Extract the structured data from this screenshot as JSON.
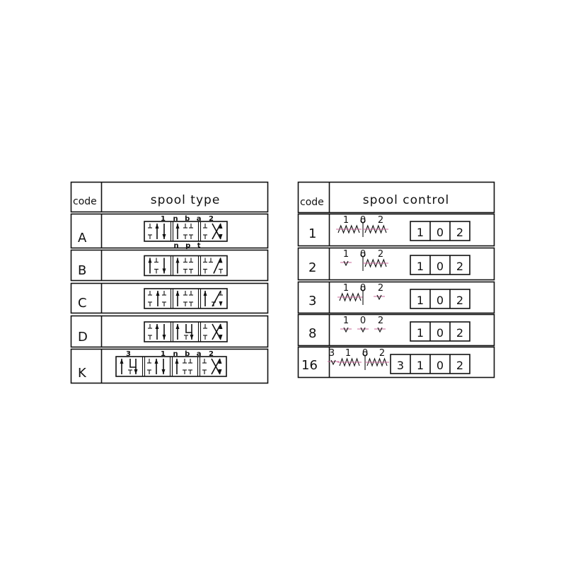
{
  "spool_type_table": {
    "header_code": "code",
    "header_title": "spool type",
    "rows": [
      {
        "code": "A",
        "top_labels": [
          "1",
          "n b a",
          "2"
        ],
        "bottom_labels": [
          "n p t"
        ]
      },
      {
        "code": "B",
        "top_labels": [],
        "bottom_labels": []
      },
      {
        "code": "C",
        "top_labels": [],
        "bottom_labels": []
      },
      {
        "code": "D",
        "top_labels": [],
        "bottom_labels": []
      },
      {
        "code": "K",
        "top_labels": [
          "3",
          "1",
          "n b a",
          "2"
        ],
        "bottom_labels": []
      }
    ]
  },
  "spool_control_table": {
    "header_code": "code",
    "header_title": "spool control",
    "rows": [
      {
        "code": "1",
        "symbol_labels": [
          "1",
          "0",
          "2"
        ],
        "positions": [
          "1",
          "0",
          "2"
        ]
      },
      {
        "code": "2",
        "symbol_labels": [
          "1",
          "0",
          "2"
        ],
        "positions": [
          "1",
          "0",
          "2"
        ]
      },
      {
        "code": "3",
        "symbol_labels": [
          "1",
          "0",
          "2"
        ],
        "positions": [
          "1",
          "0",
          "2"
        ]
      },
      {
        "code": "8",
        "symbol_labels": [
          "1",
          "0",
          "2"
        ],
        "positions": [
          "1",
          "0",
          "2"
        ]
      },
      {
        "code": "16",
        "symbol_labels": [
          "3",
          "1",
          "0",
          "2"
        ],
        "positions": [
          "3",
          "1",
          "0",
          "2"
        ]
      }
    ]
  },
  "colors": {
    "line": "#111111",
    "detent_line": "#c86a9a"
  }
}
